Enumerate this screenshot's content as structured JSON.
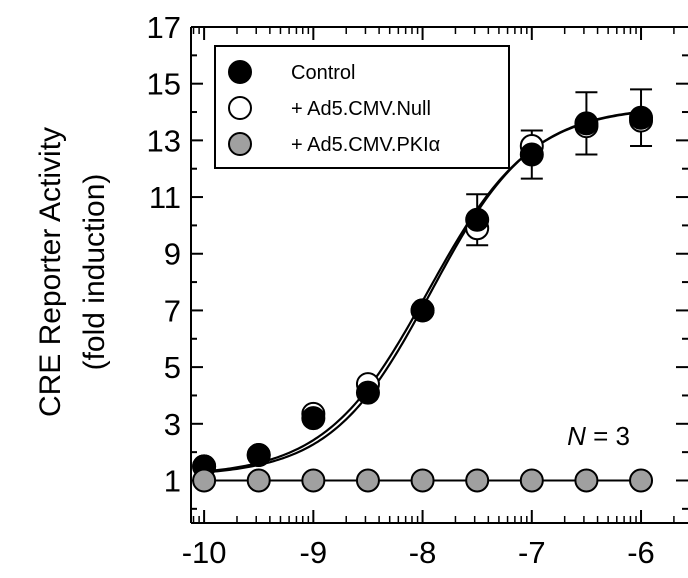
{
  "chart_data": {
    "type": "scatter",
    "xlabel": "",
    "ylabel": "CRE Reporter Activity",
    "ylabel_sub": "(fold induction)",
    "x_axis_scale": "log10",
    "xlim": [
      -10.12,
      -5.57
    ],
    "ylim": [
      -0.5,
      17
    ],
    "x_ticks": [
      -10,
      -9,
      -8,
      -7,
      -6
    ],
    "x_tick_labels": [
      "-10",
      "-9",
      "-8",
      "-7",
      "-6"
    ],
    "y_ticks": [
      1,
      3,
      5,
      7,
      9,
      11,
      13,
      15,
      17
    ],
    "y_tick_labels": [
      "1",
      "3",
      "5",
      "7",
      "9",
      "11",
      "13",
      "15",
      "17"
    ],
    "grid": false,
    "legend_position": "top-left",
    "annotation": {
      "italic": "N",
      "rest": " = 3"
    },
    "series": [
      {
        "name": "Control",
        "marker_fill": "#000000",
        "x": [
          -10,
          -9.5,
          -9,
          -8.5,
          -8,
          -7.5,
          -7,
          -6.5,
          -6
        ],
        "y": [
          1.5,
          1.9,
          3.2,
          4.1,
          7.0,
          10.2,
          12.5,
          13.6,
          13.8
        ],
        "err": [
          0,
          0,
          0,
          0,
          0,
          0.9,
          0.85,
          1.1,
          1.0
        ]
      },
      {
        "name": "+ Ad5.CMV.Null",
        "marker_fill": "#ffffff",
        "x": [
          -10,
          -9.5,
          -9,
          -8.5,
          -8,
          -7.5,
          -7,
          -6.5,
          -6
        ],
        "y": [
          1.5,
          1.9,
          3.35,
          4.4,
          7.0,
          9.9,
          12.8,
          13.5,
          13.7
        ],
        "err": [
          0,
          0,
          0,
          0,
          0,
          0,
          0,
          0,
          0
        ]
      },
      {
        "name": "+ Ad5.CMV.PKIα",
        "marker_fill": "#a0a0a0",
        "x": [
          -10,
          -9.5,
          -9,
          -8.5,
          -8,
          -7.5,
          -7,
          -6.5,
          -6
        ],
        "y": [
          1.0,
          1.0,
          1.0,
          1.0,
          1.0,
          1.0,
          1.0,
          1.0,
          1.0
        ],
        "err": [
          0,
          0,
          0,
          0,
          0,
          0,
          0,
          0,
          0
        ]
      }
    ],
    "fit_curves": [
      {
        "bottom": 1.15,
        "top": 14.2,
        "log_ec50": -7.92,
        "hill": 0.95
      },
      {
        "bottom": 1.15,
        "top": 14.2,
        "log_ec50": -7.95,
        "hill": 0.92
      }
    ]
  }
}
